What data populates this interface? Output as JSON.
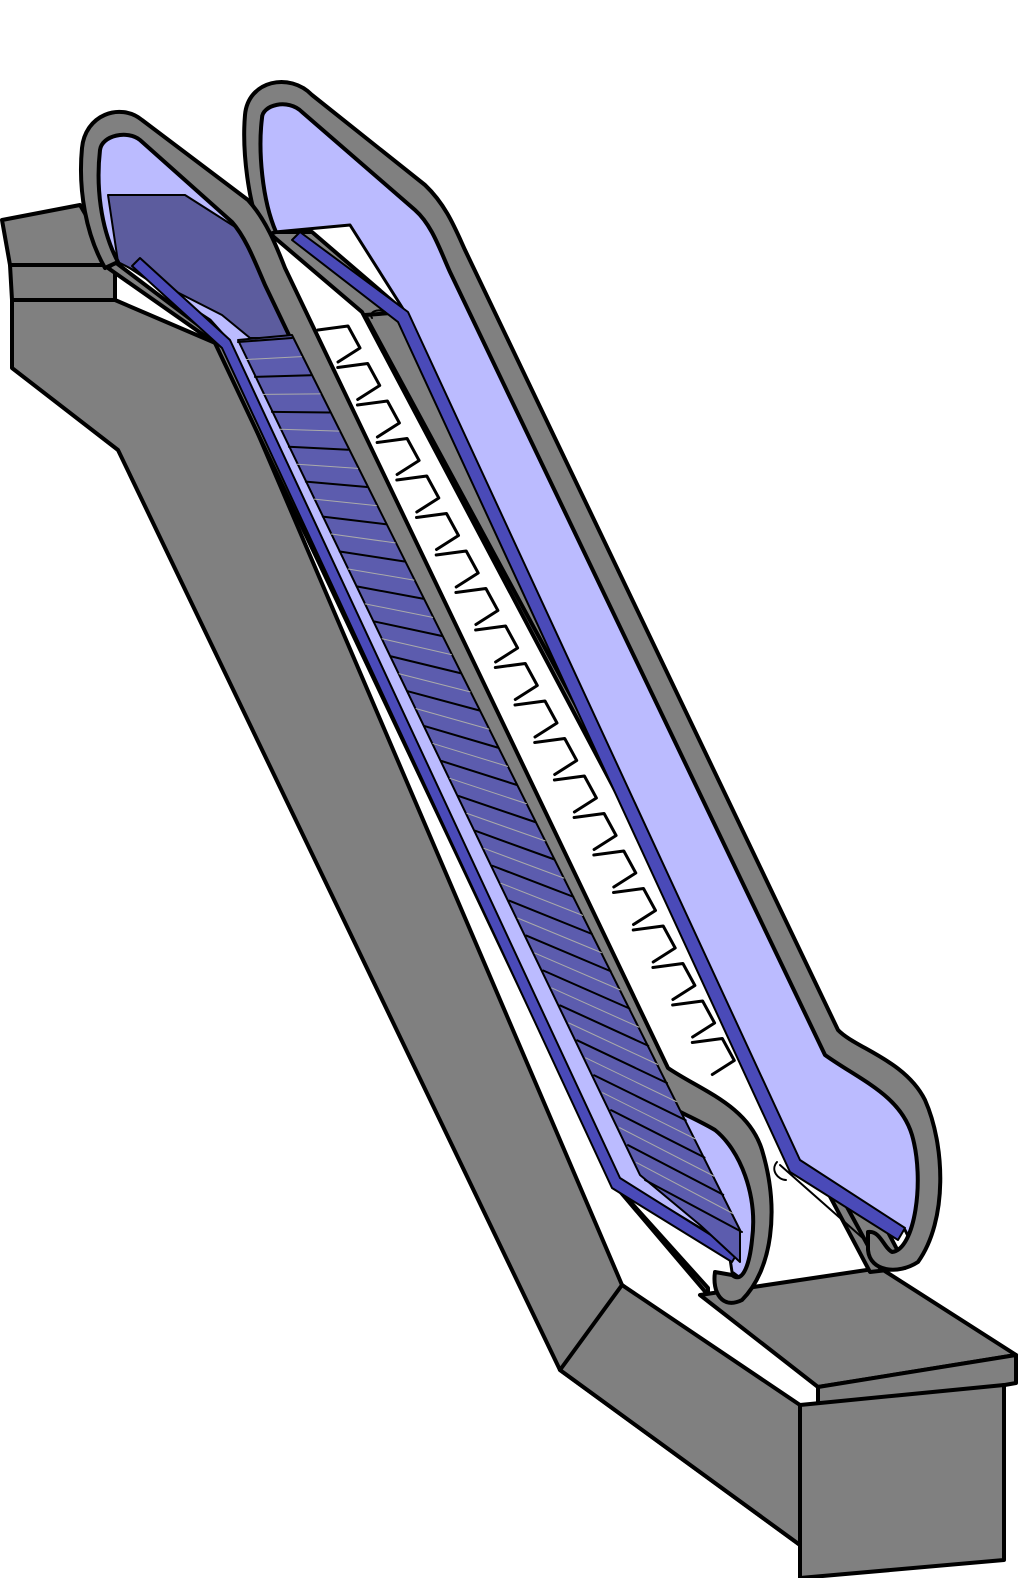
{
  "figure": {
    "subject": "escalator-3d-model",
    "colors": {
      "background": "#ffffff",
      "body": "#808080",
      "outline": "#000000",
      "glass": "#bbbbff",
      "glass_shade": "#5c5c9e",
      "skirt": "#3a3ab0",
      "step_light": "#6a6ab0",
      "step_edge": "#aaaaaa"
    },
    "components": [
      "truss-body",
      "upper-landing",
      "lower-landing",
      "left-balustrade",
      "right-balustrade",
      "left-handrail",
      "right-handrail",
      "step-band",
      "comb-plate-bottom"
    ],
    "visible_step_count": 24
  }
}
